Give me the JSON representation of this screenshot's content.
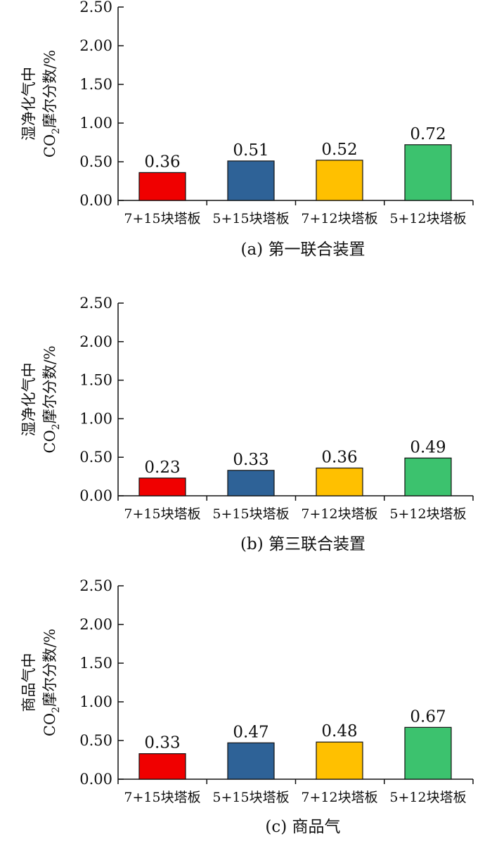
{
  "colors": [
    "#f00000",
    "#2e6297",
    "#ffc000",
    "#3cc26e"
  ],
  "chart_data": [
    {
      "type": "bar",
      "categories": [
        "7+15块塔板",
        "5+15块塔板",
        "7+12块塔板",
        "5+12块塔板"
      ],
      "values": [
        0.36,
        0.51,
        0.52,
        0.72
      ],
      "value_labels": [
        "0.36",
        "0.51",
        "0.52",
        "0.72"
      ],
      "ylim": [
        0,
        2.5
      ],
      "yticks": [
        "0.00",
        "0.50",
        "1.00",
        "1.50",
        "2.00",
        "2.50"
      ],
      "ylabel_line1": "湿净化气中",
      "ylabel_line2": "CO",
      "ylabel_sub": "2",
      "ylabel_rest": "摩尔分数/%",
      "caption": "(a) 第一联合装置"
    },
    {
      "type": "bar",
      "categories": [
        "7+15块塔板",
        "5+15块塔板",
        "7+12块塔板",
        "5+12块塔板"
      ],
      "values": [
        0.23,
        0.33,
        0.36,
        0.49
      ],
      "value_labels": [
        "0.23",
        "0.33",
        "0.36",
        "0.49"
      ],
      "ylim": [
        0,
        2.5
      ],
      "yticks": [
        "0.00",
        "0.50",
        "1.00",
        "1.50",
        "2.00",
        "2.50"
      ],
      "ylabel_line1": "湿净化气中",
      "ylabel_line2": "CO",
      "ylabel_sub": "2",
      "ylabel_rest": "摩尔分数/%",
      "caption": "(b) 第三联合装置"
    },
    {
      "type": "bar",
      "categories": [
        "7+15块塔板",
        "5+15块塔板",
        "7+12块塔板",
        "5+12块塔板"
      ],
      "values": [
        0.33,
        0.47,
        0.48,
        0.67
      ],
      "value_labels": [
        "0.33",
        "0.47",
        "0.48",
        "0.67"
      ],
      "ylim": [
        0,
        2.5
      ],
      "yticks": [
        "0.00",
        "0.50",
        "1.00",
        "1.50",
        "2.00",
        "2.50"
      ],
      "ylabel_line1": "商品气中",
      "ylabel_line2": "CO",
      "ylabel_sub": "2",
      "ylabel_rest": "摩尔分数/%",
      "caption": "(c) 商品气"
    }
  ]
}
